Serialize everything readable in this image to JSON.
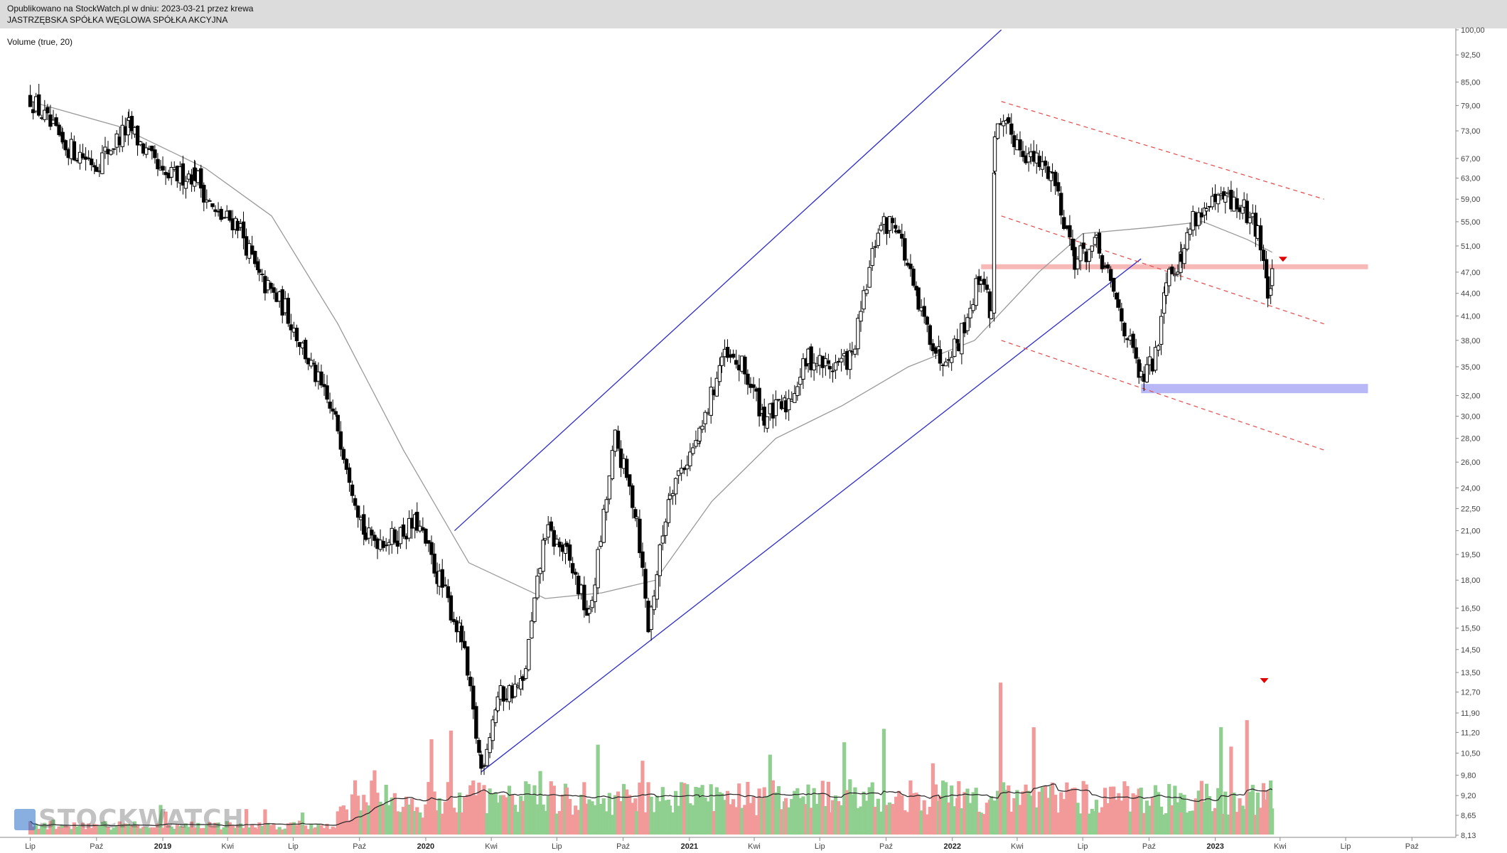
{
  "header": {
    "published": "Opublikowano na StockWatch.pl w dniu: 2023-03-21 przez krewa",
    "instrument": "JASTRZĘBSKA SPÓŁKA WĘGLOWA SPÓŁKA AKCYJNA"
  },
  "volume_caption": "Volume (true, 20)",
  "watermark": "STOCKWATCH",
  "colors": {
    "header_bg": "#dcdcdc",
    "candle": "#000000",
    "volume_up": "#8fcf8f",
    "volume_down": "#f29a9a",
    "channel": "#2b2bcc",
    "dashed_channel": "#e34b4b",
    "resistance_zone": "#f7b8b8",
    "support_zone": "#b8b8f7",
    "moving_average": "#999999",
    "volume_ma": "#222222",
    "marker": "#e00000"
  },
  "chart_data": {
    "type": "candlestick",
    "scale": "log",
    "y_ticks": [
      "100,00",
      "92,50",
      "85,00",
      "79,00",
      "73,00",
      "67,00",
      "63,00",
      "59,00",
      "55,00",
      "51,00",
      "47,00",
      "44,00",
      "41,00",
      "38,00",
      "35,00",
      "32,00",
      "30,00",
      "28,00",
      "26,00",
      "24,00",
      "22,50",
      "21,00",
      "19,50",
      "18,00",
      "16,50",
      "15,50",
      "14,50",
      "13,50",
      "12,70",
      "11,90",
      "11,20",
      "10,50",
      "9,80",
      "9,20",
      "8,65",
      "8,13"
    ],
    "x_ticks": [
      {
        "label": "Lip",
        "year": false
      },
      {
        "label": "Paź",
        "year": false
      },
      {
        "label": "2019",
        "year": true
      },
      {
        "label": "Kwi",
        "year": false
      },
      {
        "label": "Lip",
        "year": false
      },
      {
        "label": "Paź",
        "year": false
      },
      {
        "label": "2020",
        "year": true
      },
      {
        "label": "Kwi",
        "year": false
      },
      {
        "label": "Lip",
        "year": false
      },
      {
        "label": "Paź",
        "year": false
      },
      {
        "label": "2021",
        "year": true
      },
      {
        "label": "Kwi",
        "year": false
      },
      {
        "label": "Lip",
        "year": false
      },
      {
        "label": "Paź",
        "year": false
      },
      {
        "label": "2022",
        "year": true
      },
      {
        "label": "Kwi",
        "year": false
      },
      {
        "label": "Lip",
        "year": false
      },
      {
        "label": "Paź",
        "year": false
      },
      {
        "label": "2023",
        "year": true
      },
      {
        "label": "Kwi",
        "year": false
      },
      {
        "label": "Lip",
        "year": false
      },
      {
        "label": "Paź",
        "year": false
      }
    ],
    "price_path": [
      {
        "date": "2018-07-01",
        "close": 81
      },
      {
        "date": "2018-08-15",
        "close": 70
      },
      {
        "date": "2018-10-01",
        "close": 66
      },
      {
        "date": "2018-11-15",
        "close": 74
      },
      {
        "date": "2019-01-01",
        "close": 63
      },
      {
        "date": "2019-02-15",
        "close": 64
      },
      {
        "date": "2019-03-15",
        "close": 56
      },
      {
        "date": "2019-04-15",
        "close": 55
      },
      {
        "date": "2019-05-15",
        "close": 46
      },
      {
        "date": "2019-06-20",
        "close": 42
      },
      {
        "date": "2019-08-01",
        "close": 34
      },
      {
        "date": "2019-09-01",
        "close": 29
      },
      {
        "date": "2019-10-10",
        "close": 20.5
      },
      {
        "date": "2019-11-15",
        "close": 20.5
      },
      {
        "date": "2019-12-20",
        "close": 21.5
      },
      {
        "date": "2020-01-20",
        "close": 18
      },
      {
        "date": "2020-02-20",
        "close": 15
      },
      {
        "date": "2020-03-18",
        "close": 10
      },
      {
        "date": "2020-04-10",
        "close": 12.5
      },
      {
        "date": "2020-05-15",
        "close": 13
      },
      {
        "date": "2020-06-15",
        "close": 21
      },
      {
        "date": "2020-07-15",
        "close": 19.5
      },
      {
        "date": "2020-08-15",
        "close": 16
      },
      {
        "date": "2020-09-20",
        "close": 28
      },
      {
        "date": "2020-10-20",
        "close": 22
      },
      {
        "date": "2020-11-05",
        "close": 15.5
      },
      {
        "date": "2020-12-05",
        "close": 24
      },
      {
        "date": "2021-01-15",
        "close": 28
      },
      {
        "date": "2021-02-15",
        "close": 36
      },
      {
        "date": "2021-03-15",
        "close": 35
      },
      {
        "date": "2021-04-15",
        "close": 30
      },
      {
        "date": "2021-05-15",
        "close": 31
      },
      {
        "date": "2021-06-15",
        "close": 36
      },
      {
        "date": "2021-07-15",
        "close": 35
      },
      {
        "date": "2021-08-15",
        "close": 36
      },
      {
        "date": "2021-09-20",
        "close": 54
      },
      {
        "date": "2021-10-15",
        "close": 55
      },
      {
        "date": "2021-11-15",
        "close": 42
      },
      {
        "date": "2021-12-15",
        "close": 36
      },
      {
        "date": "2022-01-10",
        "close": 38
      },
      {
        "date": "2022-02-10",
        "close": 47
      },
      {
        "date": "2022-02-24",
        "close": 41
      },
      {
        "date": "2022-03-01",
        "close": 73
      },
      {
        "date": "2022-03-20",
        "close": 73
      },
      {
        "date": "2022-04-20",
        "close": 67
      },
      {
        "date": "2022-05-20",
        "close": 64
      },
      {
        "date": "2022-06-20",
        "close": 49
      },
      {
        "date": "2022-07-20",
        "close": 51
      },
      {
        "date": "2022-08-20",
        "close": 42
      },
      {
        "date": "2022-09-20",
        "close": 33.5
      },
      {
        "date": "2022-10-10",
        "close": 36
      },
      {
        "date": "2022-10-25",
        "close": 47
      },
      {
        "date": "2022-11-15",
        "close": 49
      },
      {
        "date": "2022-12-01",
        "close": 56
      },
      {
        "date": "2022-12-20",
        "close": 57
      },
      {
        "date": "2023-01-15",
        "close": 59
      },
      {
        "date": "2023-02-10",
        "close": 57
      },
      {
        "date": "2023-03-01",
        "close": 54
      },
      {
        "date": "2023-03-15",
        "close": 44
      },
      {
        "date": "2023-03-21",
        "close": 46
      }
    ],
    "moving_average": [
      {
        "date": "2018-07-01",
        "value": 80
      },
      {
        "date": "2018-11-01",
        "value": 74
      },
      {
        "date": "2019-03-01",
        "value": 65
      },
      {
        "date": "2019-06-01",
        "value": 56
      },
      {
        "date": "2019-09-01",
        "value": 40
      },
      {
        "date": "2019-12-01",
        "value": 27
      },
      {
        "date": "2020-03-01",
        "value": 19
      },
      {
        "date": "2020-06-15",
        "value": 17
      },
      {
        "date": "2020-09-01",
        "value": 17.3
      },
      {
        "date": "2020-11-15",
        "value": 18
      },
      {
        "date": "2021-02-01",
        "value": 23
      },
      {
        "date": "2021-05-01",
        "value": 28
      },
      {
        "date": "2021-08-01",
        "value": 31
      },
      {
        "date": "2021-11-01",
        "value": 35
      },
      {
        "date": "2022-02-01",
        "value": 38
      },
      {
        "date": "2022-05-01",
        "value": 47
      },
      {
        "date": "2022-07-01",
        "value": 53
      },
      {
        "date": "2022-10-01",
        "value": 54
      },
      {
        "date": "2022-12-15",
        "value": 55
      },
      {
        "date": "2023-02-15",
        "value": 52
      },
      {
        "date": "2023-03-21",
        "value": 50
      }
    ],
    "channel": [
      {
        "from": {
          "date": "2020-03-18",
          "value": 9.9
        },
        "to": {
          "date": "2022-09-20",
          "value": 49
        }
      },
      {
        "from": {
          "date": "2020-02-10",
          "value": 21
        },
        "to": {
          "date": "2022-03-10",
          "value": 100
        }
      },
      {
        "from": {
          "date": "2022-03-10",
          "value": 80
        },
        "to": {
          "date": "2023-06-01",
          "value": 59
        }
      },
      {
        "from": {
          "date": "2022-03-10",
          "value": 56
        },
        "to": {
          "date": "2023-06-01",
          "value": 40
        }
      },
      {
        "from": {
          "date": "2022-03-10",
          "value": 38
        },
        "to": {
          "date": "2023-06-01",
          "value": 27
        }
      }
    ],
    "zones": [
      {
        "from": "2022-02-10",
        "to": "2023-08-01",
        "value": 47.8
      },
      {
        "from": "2022-09-20",
        "to": "2023-08-01",
        "value": 32.7
      }
    ],
    "markers": [
      "2023-04-05",
      "2023-03-10"
    ]
  }
}
